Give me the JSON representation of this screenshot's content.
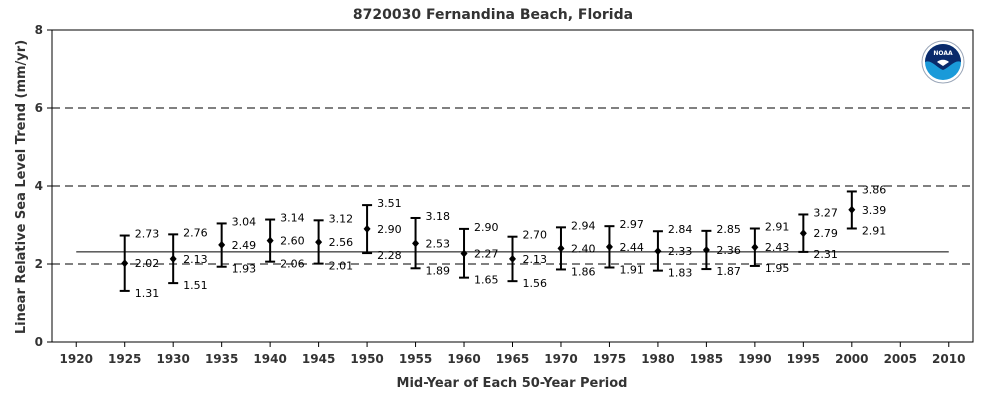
{
  "chart_data": {
    "type": "scatter",
    "title": "8720030 Fernandina Beach, Florida",
    "xlabel": "Mid-Year of Each 50-Year Period",
    "ylabel": "Linear Relative Sea Level Trend (mm/yr)",
    "xlim": [
      1917.5,
      2012.5
    ],
    "ylim": [
      0,
      8
    ],
    "x_ticks": [
      1920,
      1925,
      1930,
      1935,
      1940,
      1945,
      1950,
      1955,
      1960,
      1965,
      1970,
      1975,
      1980,
      1985,
      1990,
      1995,
      2000,
      2005,
      2010
    ],
    "y_ticks": [
      0,
      2,
      4,
      6,
      8
    ],
    "dashed_gridlines_y": [
      2,
      4,
      6
    ],
    "reference_line": {
      "value": 2.31,
      "x_start": 1920,
      "x_end": 2010
    },
    "logo": "NOAA",
    "points": [
      {
        "x": 1925,
        "trend": 2.02,
        "upper": 2.73,
        "lower": 1.31,
        "trend_label": "2.02",
        "upper_label": "2.73",
        "lower_label": "1.31"
      },
      {
        "x": 1930,
        "trend": 2.13,
        "upper": 2.76,
        "lower": 1.51,
        "trend_label": "2.13",
        "upper_label": "2.76",
        "lower_label": "1.51"
      },
      {
        "x": 1935,
        "trend": 2.49,
        "upper": 3.04,
        "lower": 1.93,
        "trend_label": "2.49",
        "upper_label": "3.04",
        "lower_label": "1.93"
      },
      {
        "x": 1940,
        "trend": 2.6,
        "upper": 3.14,
        "lower": 2.06,
        "trend_label": "2.60",
        "upper_label": "3.14",
        "lower_label": "2.06"
      },
      {
        "x": 1945,
        "trend": 2.56,
        "upper": 3.12,
        "lower": 2.01,
        "trend_label": "2.56",
        "upper_label": "3.12",
        "lower_label": "2.01"
      },
      {
        "x": 1950,
        "trend": 2.9,
        "upper": 3.51,
        "lower": 2.28,
        "trend_label": "2.90",
        "upper_label": "3.51",
        "lower_label": "2.28"
      },
      {
        "x": 1955,
        "trend": 2.53,
        "upper": 3.18,
        "lower": 1.89,
        "trend_label": "2.53",
        "upper_label": "3.18",
        "lower_label": "1.89"
      },
      {
        "x": 1960,
        "trend": 2.27,
        "upper": 2.9,
        "lower": 1.65,
        "trend_label": "2.27",
        "upper_label": "2.90",
        "lower_label": "1.65"
      },
      {
        "x": 1965,
        "trend": 2.13,
        "upper": 2.7,
        "lower": 1.56,
        "trend_label": "2.13",
        "upper_label": "2.70",
        "lower_label": "1.56"
      },
      {
        "x": 1970,
        "trend": 2.4,
        "upper": 2.94,
        "lower": 1.86,
        "trend_label": "2.40",
        "upper_label": "2.94",
        "lower_label": "1.86"
      },
      {
        "x": 1975,
        "trend": 2.44,
        "upper": 2.97,
        "lower": 1.91,
        "trend_label": "2.44",
        "upper_label": "2.97",
        "lower_label": "1.91"
      },
      {
        "x": 1980,
        "trend": 2.33,
        "upper": 2.84,
        "lower": 1.83,
        "trend_label": "2.33",
        "upper_label": "2.84",
        "lower_label": "1.83"
      },
      {
        "x": 1985,
        "trend": 2.36,
        "upper": 2.85,
        "lower": 1.87,
        "trend_label": "2.36",
        "upper_label": "2.85",
        "lower_label": "1.87"
      },
      {
        "x": 1990,
        "trend": 2.43,
        "upper": 2.91,
        "lower": 1.95,
        "trend_label": "2.43",
        "upper_label": "2.91",
        "lower_label": "1.95"
      },
      {
        "x": 1995,
        "trend": 2.79,
        "upper": 3.27,
        "lower": 2.31,
        "trend_label": "2.79",
        "upper_label": "3.27",
        "lower_label": "2.31"
      },
      {
        "x": 2000,
        "trend": 3.39,
        "upper": 3.86,
        "lower": 2.91,
        "trend_label": "3.39",
        "upper_label": "3.86",
        "lower_label": "2.91"
      }
    ]
  }
}
